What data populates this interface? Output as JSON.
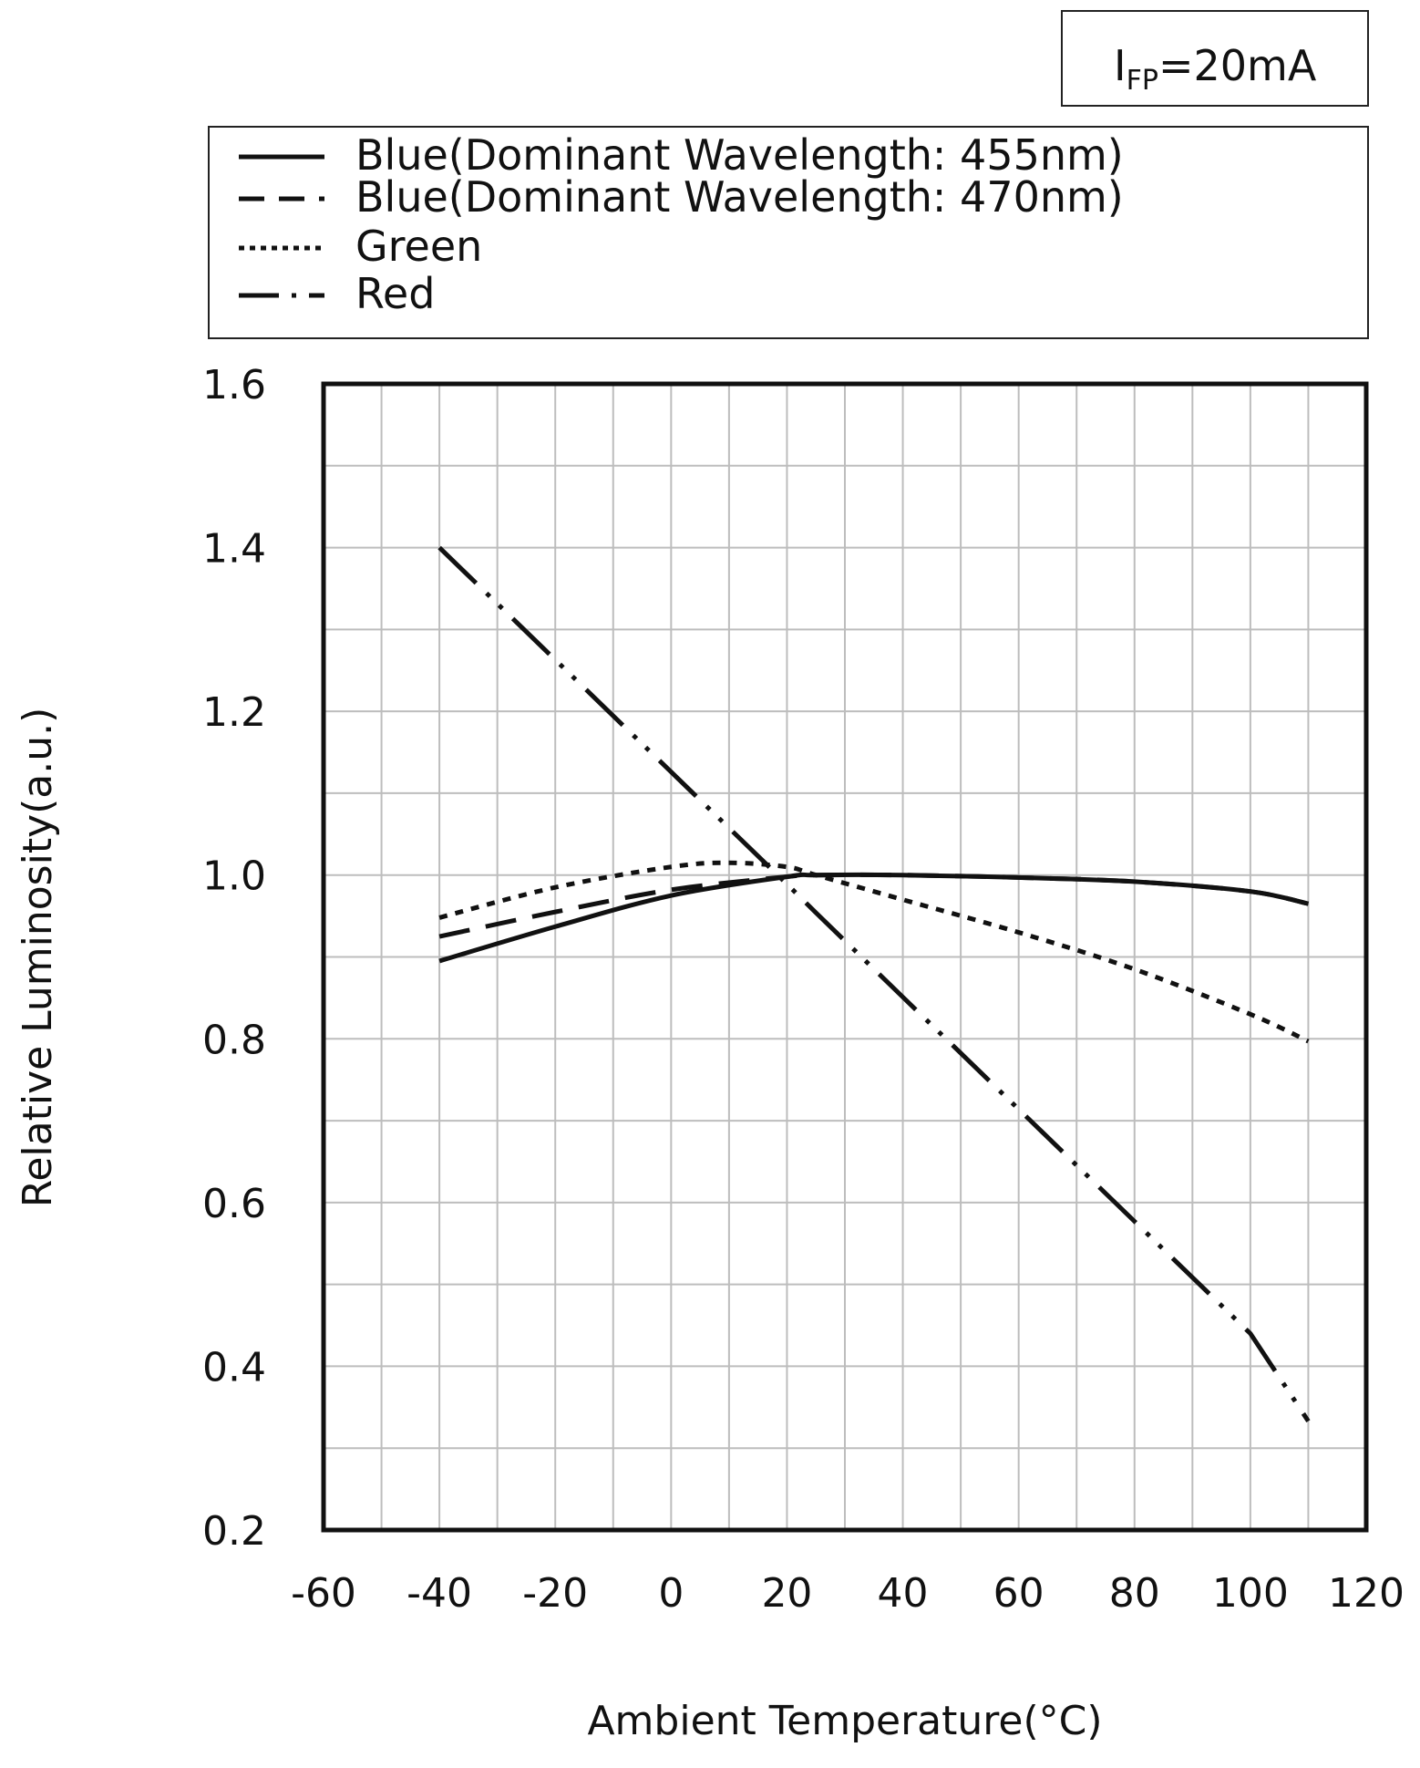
{
  "condition": {
    "base": "I",
    "subscript": "FP",
    "value": "=20mA"
  },
  "chart_data": {
    "type": "line",
    "title": "",
    "xlabel": "Ambient Temperature(°C)",
    "ylabel": "Relative Luminosity(a.u.)",
    "xlim": [
      -60,
      120
    ],
    "ylim": [
      0.2,
      1.6
    ],
    "x_ticks": [
      -60,
      -40,
      -20,
      0,
      20,
      40,
      60,
      80,
      100,
      120
    ],
    "y_ticks": [
      0.2,
      0.4,
      0.6,
      0.8,
      1.0,
      1.2,
      1.4,
      1.6
    ],
    "x_tick_labels": [
      "-60",
      "-40",
      "-20",
      "0",
      "20",
      "40",
      "60",
      "80",
      "100",
      "120"
    ],
    "y_tick_labels": [
      "0.2",
      "0.4",
      "0.6",
      "0.8",
      "1.0",
      "1.2",
      "1.4",
      "1.6"
    ],
    "grid": true,
    "grid_step": {
      "x": 10,
      "y": 0.1
    },
    "legend_position": "top",
    "series": [
      {
        "name": "Blue(Dominant Wavelength: 455nm)",
        "style": "solid",
        "color": "#111111",
        "x": [
          -40,
          -20,
          0,
          20,
          25,
          40,
          60,
          80,
          100,
          110
        ],
        "y": [
          0.895,
          0.937,
          0.975,
          0.998,
          1.0,
          1.0,
          0.997,
          0.992,
          0.98,
          0.965
        ]
      },
      {
        "name": "Blue(Dominant Wavelength: 470nm)",
        "style": "dashed",
        "color": "#111111",
        "x": [
          -40,
          -20,
          0,
          20,
          25,
          40,
          60,
          80,
          100,
          110
        ],
        "y": [
          0.925,
          0.955,
          0.982,
          0.998,
          1.0,
          1.0,
          0.997,
          0.992,
          0.98,
          0.965
        ]
      },
      {
        "name": "Green",
        "style": "dotted",
        "color": "#111111",
        "x": [
          -40,
          -20,
          0,
          10,
          20,
          25,
          40,
          60,
          80,
          100,
          110
        ],
        "y": [
          0.948,
          0.985,
          1.01,
          1.015,
          1.01,
          1.0,
          0.97,
          0.93,
          0.885,
          0.83,
          0.797
        ]
      },
      {
        "name": "Red",
        "style": "dash-dot-dot",
        "color": "#111111",
        "x": [
          -40,
          -20,
          0,
          20,
          25,
          40,
          60,
          80,
          100,
          110
        ],
        "y": [
          1.4,
          1.263,
          1.126,
          0.989,
          0.954,
          0.851,
          0.714,
          0.577,
          0.44,
          0.333
        ]
      }
    ]
  }
}
